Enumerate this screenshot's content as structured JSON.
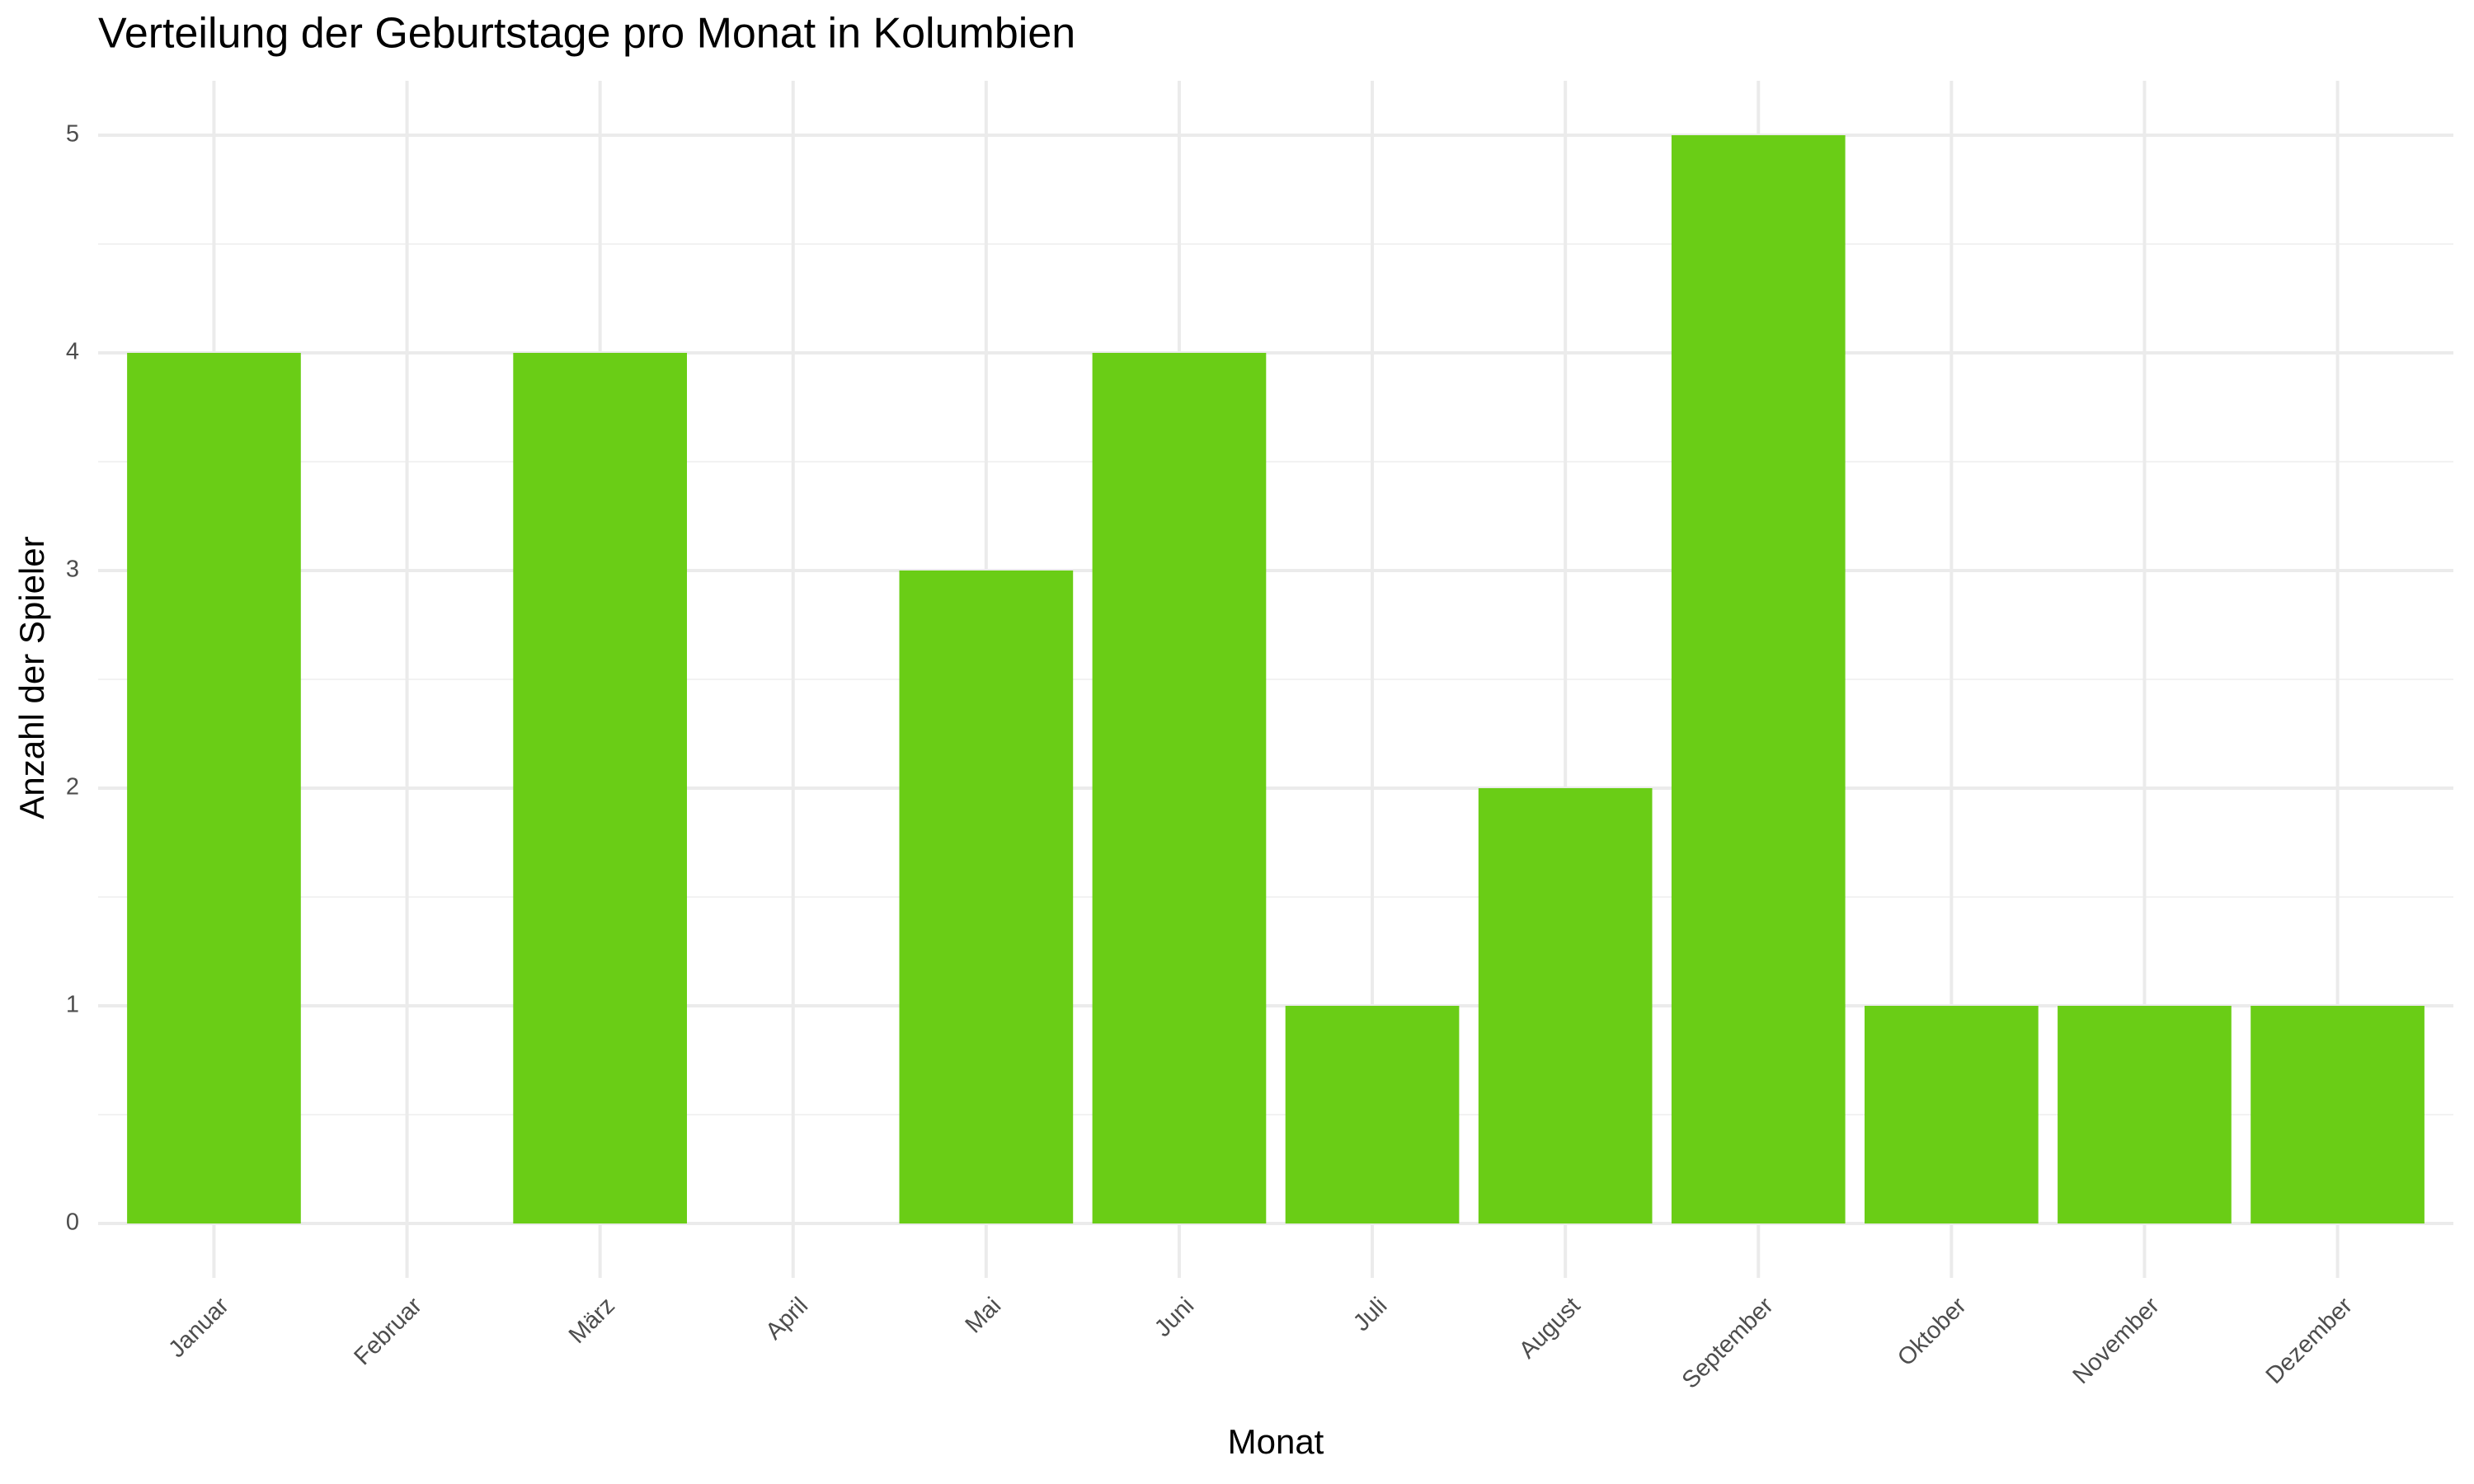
{
  "chart_data": {
    "type": "bar",
    "title": "Verteilung der Geburtstage pro Monat in Kolumbien",
    "x_label": "Monat",
    "y_label": "Anzahl der Spieler",
    "categories": [
      "Januar",
      "Februar",
      "März",
      "April",
      "Mai",
      "Juni",
      "Juli",
      "August",
      "September",
      "Oktober",
      "November",
      "Dezember"
    ],
    "values": [
      4,
      0,
      4,
      0,
      3,
      4,
      1,
      2,
      5,
      1,
      1,
      1
    ],
    "color": "#6acd16",
    "ylim": [
      -0.25,
      5.25
    ],
    "yticks": [
      0,
      1,
      2,
      3,
      4,
      5
    ],
    "grid": true
  }
}
